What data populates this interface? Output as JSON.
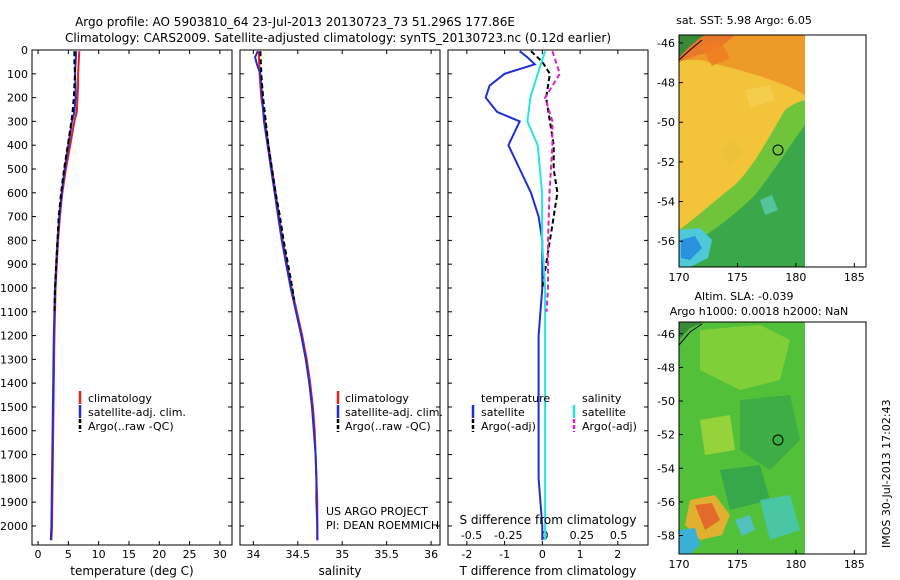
{
  "header": {
    "line1": "Argo profile: AO 5903810_64 23-Jul-2013 20130723_73 51.296S 177.86E",
    "line2": "Climatology: CARS2009. Satellite-adjusted climatology: synTS_20130723.nc (0.12d earlier)"
  },
  "credit": {
    "line1": "US ARGO PROJECT",
    "line2": "PI: DEAN ROEMMICH"
  },
  "stamp": "IMOS 30-Jul-2013 17:02:43",
  "colors": {
    "climatology": "#e8201c",
    "satellite": "#1f2fd6",
    "argo": "#000000",
    "cyan": "#22e6e6",
    "magenta": "#e020c8"
  },
  "chart_data": [
    {
      "type": "line",
      "name": "temperature",
      "xlabel": "temperature (deg C)",
      "ylabel": "",
      "xlim": [
        -1,
        32
      ],
      "ylim": [
        2080,
        0
      ],
      "xticks": [
        0,
        5,
        10,
        15,
        20,
        25,
        30
      ],
      "yticks": [
        0,
        100,
        200,
        300,
        400,
        500,
        600,
        700,
        800,
        900,
        1000,
        1100,
        1200,
        1300,
        1400,
        1500,
        1600,
        1700,
        1800,
        1900,
        2000
      ],
      "legend": [
        "climatology",
        "satellite-adj. clim.",
        "Argo(..raw -QC)"
      ],
      "series": [
        {
          "name": "climatology",
          "color": "#e8201c",
          "dash": "",
          "depth": [
            5,
            50,
            100,
            150,
            200,
            260,
            300,
            400,
            500,
            600,
            700,
            800,
            900,
            1000,
            1200,
            1400,
            1600,
            1800,
            2000,
            2060
          ],
          "values": [
            6.8,
            6.7,
            6.6,
            6.6,
            6.5,
            6.4,
            6.0,
            5.3,
            4.6,
            4.0,
            3.6,
            3.3,
            3.1,
            2.9,
            2.7,
            2.6,
            2.5,
            2.4,
            2.3,
            2.2
          ]
        },
        {
          "name": "satellite-adj. clim.",
          "color": "#1f2fd6",
          "dash": "",
          "depth": [
            5,
            50,
            100,
            150,
            200,
            260,
            300,
            400,
            500,
            600,
            700,
            800,
            900,
            1000,
            1200,
            1400,
            1600,
            1800,
            2000,
            2060
          ],
          "values": [
            6.3,
            6.2,
            6.1,
            6.2,
            6.2,
            6.0,
            5.6,
            5.0,
            4.4,
            3.9,
            3.5,
            3.2,
            3.0,
            2.8,
            2.6,
            2.5,
            2.4,
            2.3,
            2.2,
            2.1
          ]
        },
        {
          "name": "Argo(..raw -QC)",
          "color": "#000000",
          "dash": "5,3",
          "depth": [
            5,
            50,
            100,
            150,
            200,
            260,
            300,
            400,
            500,
            600,
            700,
            800,
            900,
            1000,
            1100
          ],
          "values": [
            6.0,
            6.0,
            6.1,
            6.0,
            5.9,
            5.7,
            5.5,
            4.9,
            4.3,
            3.8,
            3.4,
            3.2,
            3.0,
            2.8,
            2.7
          ]
        }
      ]
    },
    {
      "type": "line",
      "name": "salinity",
      "xlabel": "salinity",
      "ylabel": "",
      "xlim": [
        33.85,
        36.1
      ],
      "ylim": [
        2080,
        0
      ],
      "xticks": [
        34,
        34.5,
        35,
        35.5,
        36
      ],
      "legend": [
        "climatology",
        "satellite-adj. clim.",
        "Argo(..raw -QC)"
      ],
      "series": [
        {
          "name": "climatology",
          "color": "#e8201c",
          "dash": "",
          "depth": [
            5,
            100,
            200,
            300,
            400,
            500,
            600,
            700,
            800,
            900,
            1000,
            1100,
            1200,
            1300,
            1400,
            1500,
            1600,
            1700,
            1800,
            1900,
            2000,
            2060
          ],
          "values": [
            34.06,
            34.07,
            34.09,
            34.13,
            34.17,
            34.21,
            34.25,
            34.29,
            34.33,
            34.38,
            34.43,
            34.49,
            34.55,
            34.6,
            34.64,
            34.67,
            34.69,
            34.7,
            34.71,
            34.72,
            34.72,
            34.72
          ]
        },
        {
          "name": "satellite-adj. clim.",
          "color": "#1f2fd6",
          "dash": "",
          "depth": [
            5,
            30,
            60,
            100,
            200,
            300,
            400,
            500,
            600,
            700,
            800,
            900,
            1000,
            1100,
            1200,
            1300,
            1400,
            1500,
            1600,
            1700,
            1800,
            1900,
            2000,
            2060
          ],
          "values": [
            34.05,
            34.02,
            34.04,
            34.08,
            34.1,
            34.12,
            34.16,
            34.2,
            34.24,
            34.28,
            34.32,
            34.37,
            34.42,
            34.48,
            34.54,
            34.59,
            34.63,
            34.66,
            34.68,
            34.7,
            34.71,
            34.71,
            34.72,
            34.72
          ]
        },
        {
          "name": "Argo(..raw -QC)",
          "color": "#000000",
          "dash": "5,3",
          "depth": [
            5,
            100,
            200,
            300,
            400,
            500,
            600,
            700,
            800,
            900,
            1000,
            1050
          ],
          "values": [
            34.08,
            34.09,
            34.11,
            34.14,
            34.17,
            34.21,
            34.25,
            34.3,
            34.34,
            34.39,
            34.44,
            34.46
          ]
        }
      ]
    },
    {
      "type": "line",
      "name": "difference",
      "xlabel": "T difference from climatology",
      "xlabel2": "S difference from climatology",
      "xlim": [
        -2.5,
        2.8
      ],
      "ylim": [
        2080,
        0
      ],
      "xticks": [
        -2,
        -1,
        0,
        1,
        2
      ],
      "sticks": [
        -0.5,
        -0.25,
        0,
        0.25,
        0.5
      ],
      "sticklabels": [
        "-0.5",
        "-0.25",
        "0",
        "0.25",
        "0.5"
      ],
      "legend_titles": [
        "temperature",
        "salinity"
      ],
      "legend_left": [
        "satellite",
        "Argo(-adj)"
      ],
      "legend_right": [
        "satellite",
        "Argo(-adj)"
      ],
      "series": [
        {
          "name": "T satellite",
          "color": "#1f2fd6",
          "dash": "",
          "depth": [
            5,
            30,
            60,
            100,
            150,
            200,
            260,
            300,
            400,
            500,
            600,
            700,
            800,
            900,
            1000,
            1200,
            1400,
            1600,
            1800,
            2000,
            2060
          ],
          "values": [
            -0.6,
            -0.4,
            -0.2,
            -1.0,
            -1.4,
            -1.5,
            -1.2,
            -0.6,
            -0.9,
            -0.6,
            -0.3,
            -0.1,
            0.0,
            0.0,
            0.0,
            -0.1,
            -0.1,
            -0.1,
            -0.1,
            0.0,
            0.0
          ]
        },
        {
          "name": "T Argo(-adj)",
          "color": "#000000",
          "dash": "5,3",
          "depth": [
            5,
            50,
            100,
            200,
            300,
            400,
            500,
            600,
            700,
            800,
            900,
            1000
          ],
          "values": [
            -0.3,
            0.0,
            0.2,
            0.1,
            0.2,
            0.3,
            0.3,
            0.4,
            0.3,
            0.2,
            0.1,
            0.0
          ]
        },
        {
          "name": "S satellite",
          "color": "#22e6e6",
          "dash": "",
          "depth": [
            5,
            100,
            200,
            300,
            400,
            600,
            800,
            1000,
            1400,
            2060
          ],
          "values": [
            0.0,
            -0.05,
            -0.1,
            -0.12,
            -0.05,
            -0.02,
            -0.02,
            0.0,
            0.0,
            0.0
          ]
        },
        {
          "name": "S Argo(-adj)",
          "color": "#e020c8",
          "dash": "5,3",
          "depth": [
            5,
            100,
            200,
            300,
            400,
            600,
            800,
            1000,
            1100
          ],
          "values": [
            0.05,
            0.1,
            0.0,
            0.05,
            0.05,
            0.03,
            0.02,
            0.02,
            0.01
          ]
        }
      ]
    },
    {
      "type": "heatmap",
      "name": "SST map",
      "title": "sat. SST: 5.98 Argo: 6.05",
      "xlim": [
        170,
        186
      ],
      "ylim": [
        -57.3,
        -45.6
      ],
      "xticks": [
        170,
        175,
        180,
        185
      ],
      "yticks": [
        -46,
        -48,
        -50,
        -52,
        -54,
        -56
      ]
    },
    {
      "type": "heatmap",
      "name": "SLA map",
      "title": "Altim. SLA: -0.039",
      "title2": "Argo h1000: 0.0018 h2000: NaN",
      "xlim": [
        170,
        186
      ],
      "ylim": [
        -59.1,
        -45.3
      ],
      "xticks": [
        170,
        175,
        180,
        185
      ],
      "yticks": [
        -46,
        -48,
        -50,
        -52,
        -54,
        -56,
        -58
      ]
    }
  ]
}
